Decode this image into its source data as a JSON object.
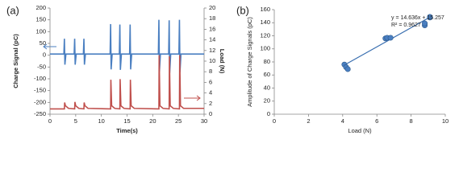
{
  "chart_data": [
    {
      "type": "line",
      "panel_label": "(a)",
      "xlabel": "Time(s)",
      "ylabel": "Charge Signal (pC)",
      "y2label": "Load (N)",
      "xlim": [
        0,
        30
      ],
      "xticks": [
        0,
        5,
        10,
        15,
        20,
        25,
        30
      ],
      "ylim": [
        -250,
        200
      ],
      "yticks": [
        -250,
        -200,
        -150,
        -100,
        -50,
        0,
        50,
        100,
        150,
        200
      ],
      "y2lim": [
        0,
        20
      ],
      "y2ticks": [
        0,
        2,
        4,
        6,
        8,
        10,
        12,
        14,
        16,
        18,
        20
      ],
      "grid": false,
      "series": [
        {
          "color": "#4a7fc1",
          "x": [
            0,
            2.7,
            2.8,
            2.9,
            3.1,
            4.7,
            4.8,
            4.9,
            5.1,
            6.5,
            6.6,
            6.7,
            6.9,
            11.7,
            11.8,
            11.9,
            12.1,
            13.5,
            13.6,
            13.7,
            13.9,
            15.5,
            15.6,
            15.7,
            15.9,
            21.1,
            21.2,
            21.3,
            21.5,
            23.1,
            23.2,
            23.3,
            23.5,
            25.1,
            25.2,
            25.3,
            25.5,
            30
          ],
          "values": [
            5,
            5,
            70,
            -40,
            5,
            5,
            70,
            -40,
            5,
            5,
            70,
            -40,
            5,
            5,
            132,
            -60,
            5,
            5,
            130,
            -62,
            5,
            5,
            130,
            -60,
            5,
            5,
            150,
            -70,
            5,
            5,
            148,
            -75,
            5,
            5,
            150,
            -72,
            5,
            5
          ]
        },
        {
          "color": "#c0504d",
          "axis": "y2",
          "x": [
            0,
            2.8,
            2.85,
            3.0,
            3.6,
            4.8,
            4.85,
            5.0,
            5.6,
            6.6,
            6.65,
            6.8,
            7.4,
            11.8,
            11.85,
            12.0,
            12.6,
            13.6,
            13.65,
            13.8,
            14.4,
            15.6,
            15.65,
            15.8,
            16.4,
            21.2,
            21.25,
            21.4,
            22.0,
            23.2,
            23.25,
            23.4,
            24.0,
            25.2,
            25.25,
            25.4,
            26.0,
            30
          ],
          "values": [
            1.0,
            1.0,
            2.2,
            1.6,
            1.1,
            1.0,
            2.3,
            1.6,
            1.1,
            1.0,
            2.2,
            1.6,
            1.1,
            1.0,
            6.5,
            1.6,
            1.1,
            1.0,
            6.6,
            1.6,
            1.1,
            1.0,
            6.5,
            1.6,
            1.1,
            1.0,
            11.1,
            1.6,
            1.1,
            1.0,
            10.9,
            1.6,
            1.1,
            1.0,
            11.1,
            1.6,
            1.1,
            1.1
          ]
        }
      ]
    },
    {
      "type": "scatter",
      "panel_label": "(b)",
      "xlabel": "Load (N)",
      "ylabel": "Amplitude of Charge Signals (pC)",
      "xlim": [
        0,
        10
      ],
      "xticks": [
        0,
        2,
        4,
        6,
        8,
        10
      ],
      "ylim": [
        0,
        160
      ],
      "yticks": [
        0,
        20,
        40,
        60,
        80,
        100,
        120,
        140,
        160
      ],
      "grid": false,
      "color": "#4a7fc1",
      "x": [
        4.1,
        4.2,
        4.3,
        6.5,
        6.6,
        6.8,
        8.8,
        8.8,
        9.1,
        9.1
      ],
      "values": [
        76,
        72,
        69,
        116,
        117,
        117,
        136,
        139,
        148,
        149
      ],
      "trendline": {
        "equation": "y = 14.636x + 15.257",
        "r_squared": "R² = 0.9627",
        "slope": 14.636,
        "intercept": 15.257,
        "x_range": [
          4.1,
          9.1
        ]
      }
    }
  ]
}
